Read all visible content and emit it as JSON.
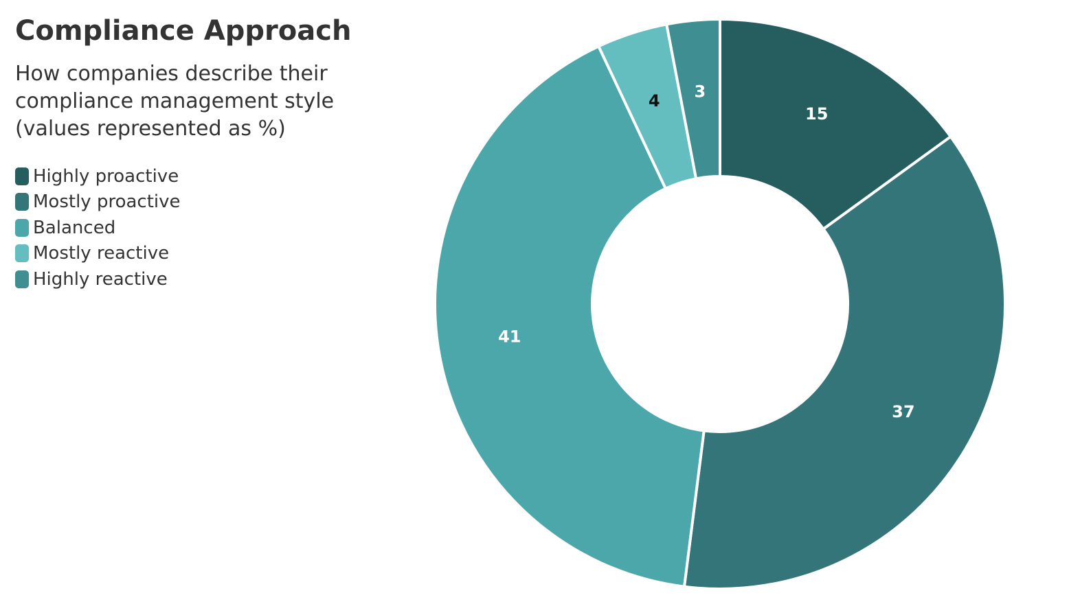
{
  "chart_data": {
    "type": "donut",
    "title": "Compliance Approach",
    "subtitle": "How companies describe their compliance management style (values represented as %)",
    "categories": [
      "Highly proactive",
      "Mostly proactive",
      "Balanced",
      "Mostly reactive",
      "Highly reactive"
    ],
    "values": [
      15,
      37,
      41,
      4,
      3
    ],
    "colors": [
      "#265e5f",
      "#347579",
      "#4ca7aa",
      "#64bdbf",
      "#3f8e91"
    ],
    "legend": "top-left"
  }
}
